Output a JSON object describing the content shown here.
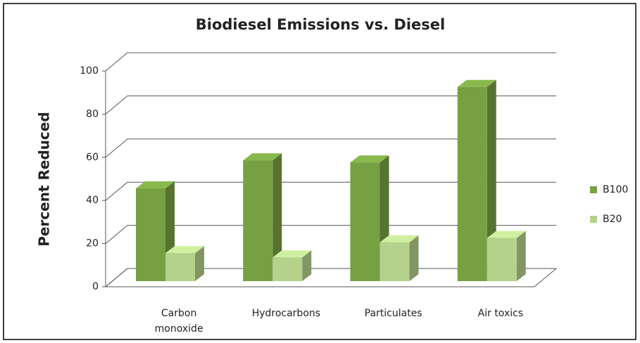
{
  "chart_data": {
    "type": "bar3d",
    "title": "Biodiesel Emissions vs. Diesel",
    "y_label": "Percent Reduced",
    "categories": [
      "Carbon\nmonoxide",
      "Hydrocarbons",
      "Particulates",
      "Air toxics"
    ],
    "series": [
      {
        "name": "B100",
        "color": "#77a043",
        "values": [
          43,
          56,
          55,
          90
        ]
      },
      {
        "name": "B20",
        "color": "#b5d18c",
        "values": [
          13,
          11,
          18,
          20
        ]
      }
    ],
    "ylim": [
      0,
      100
    ],
    "yticks": [
      0,
      20,
      40,
      60,
      80,
      100
    ],
    "grid": true,
    "legend": "right"
  }
}
